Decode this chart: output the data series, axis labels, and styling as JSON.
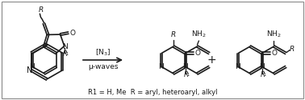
{
  "bg_color": "#ffffff",
  "border_color": "#cccccc",
  "fig_width": 3.78,
  "fig_height": 1.25,
  "dpi": 100,
  "text_color": "#1a1a1a",
  "arrow_color": "#1a1a1a",
  "reaction_label_1": "[N",
  "reaction_label_2": "3",
  "reaction_label_3": "]",
  "reaction_label_full": "[N$_3$]",
  "reaction_label_bottom": "μ-waves",
  "plus_sign": "+",
  "footer_text": "R1 = H, Me  R = aryl, heteroaryl, alkyl",
  "line_color": "#1a1a1a",
  "line_width": 1.0,
  "bond_lw": 1.2
}
